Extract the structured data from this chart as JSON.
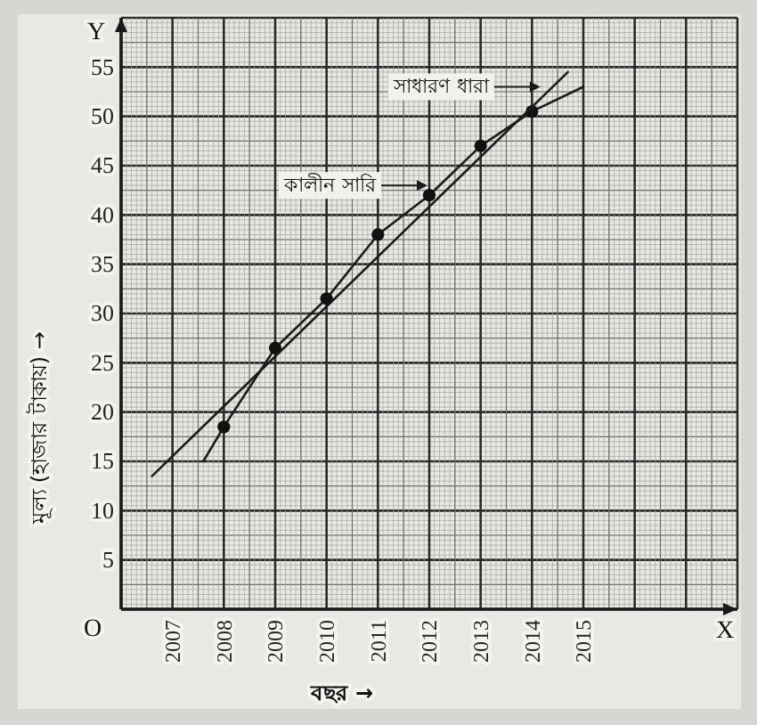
{
  "chart_data": {
    "type": "line",
    "xlabel": "বছর →",
    "ylabel": "মূল্য (হাজার টাকায়) →",
    "xlim": [
      2006,
      2018
    ],
    "ylim": [
      0,
      60
    ],
    "xticks": [
      2007,
      2008,
      2009,
      2010,
      2011,
      2012,
      2013,
      2014,
      2015
    ],
    "yticks": [
      5,
      10,
      15,
      20,
      25,
      30,
      35,
      40,
      45,
      50,
      55
    ],
    "grid": true,
    "series": [
      {
        "color": "#1c1c1c",
        "x": [
          2007.6,
          2008,
          2009,
          2010,
          2011,
          2012,
          2013,
          2014,
          2015
        ],
        "values": [
          15,
          18.5,
          26.5,
          31.5,
          38,
          42,
          47,
          50.5,
          53
        ]
      },
      {
        "type": "scatter",
        "color": "#111111",
        "marker": "circle",
        "x": [
          2008,
          2009,
          2010,
          2011,
          2012,
          2013,
          2014
        ],
        "values": [
          18.5,
          26.5,
          31.5,
          38,
          42,
          47,
          50.5
        ]
      },
      {
        "color": "#1c1c1c",
        "x": [
          2006.6,
          2014.7
        ],
        "values": [
          13.5,
          54.5
        ]
      }
    ],
    "annotations": [
      {
        "text": "কালীন সারি",
        "x": 2012,
        "y": 43
      },
      {
        "text": "সাধারণ ধারা",
        "x": 2014.2,
        "y": 53
      },
      "O",
      "Y",
      "X"
    ]
  }
}
